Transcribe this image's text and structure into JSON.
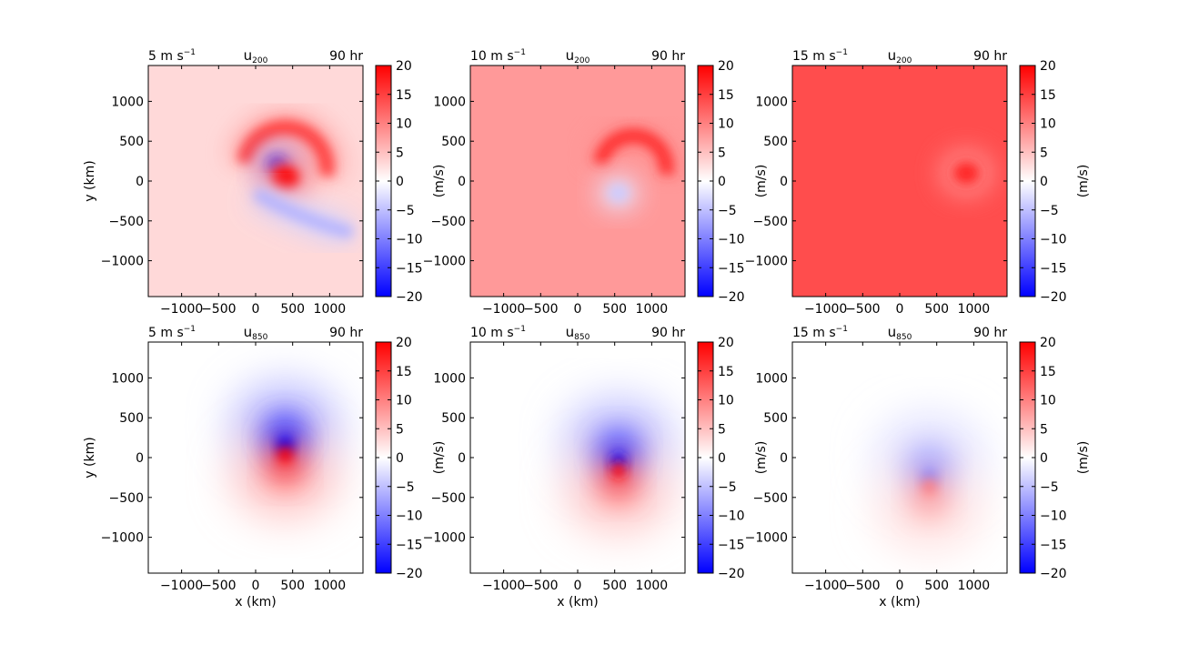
{
  "figure": {
    "rows": [
      {
        "variable_main": "u",
        "variable_sub": "200"
      },
      {
        "variable_main": "u",
        "variable_sub": "850"
      }
    ],
    "columns": [
      {
        "shear_label": "5 m s",
        "shear_exp": "−1"
      },
      {
        "shear_label": "10 m s",
        "shear_exp": "−1"
      },
      {
        "shear_label": "15 m s",
        "shear_exp": "−1"
      }
    ],
    "time_label": "90 hr",
    "x_label": "x (km)",
    "y_label": "y (km)",
    "colorbar_label": "(m/s)",
    "colorbar_ticks": [
      "20",
      "15",
      "10",
      "5",
      "0",
      "−5",
      "−10",
      "−15",
      "−20"
    ],
    "x_ticks": [
      "−1000",
      "−500",
      "0",
      "500",
      "1000"
    ],
    "y_ticks": [
      "1000",
      "500",
      "0",
      "−500",
      "−1000"
    ]
  },
  "chart_data": [
    {
      "type": "heatmap",
      "title": "u200",
      "subtitle_left": "5 m s−1",
      "subtitle_right": "90 hr",
      "xlim": [
        -1450,
        1450
      ],
      "ylim": [
        -1450,
        1450
      ],
      "xlabel": "",
      "ylabel": "y (km)",
      "colorbar": {
        "label": "(m/s)",
        "range": [
          -20,
          20
        ],
        "colormap": "bwr"
      },
      "background_value": 3,
      "features": [
        {
          "kind": "arc_jet",
          "cx": 400,
          "cy": 150,
          "radius": 560,
          "value": 15,
          "note": "positive jet north of centre"
        },
        {
          "kind": "blob",
          "x": 300,
          "y": 200,
          "value": -18,
          "note": "negative core near centre"
        },
        {
          "kind": "blob",
          "x": 400,
          "y": 40,
          "value": 20,
          "note": "positive core near centre"
        },
        {
          "kind": "band",
          "from": [
            0,
            -150
          ],
          "to": [
            1300,
            -650
          ],
          "value": -6,
          "note": "negative outflow band"
        }
      ]
    },
    {
      "type": "heatmap",
      "title": "u200",
      "subtitle_left": "10 m s−1",
      "subtitle_right": "90 hr",
      "xlim": [
        -1450,
        1450
      ],
      "ylim": [
        -1450,
        1450
      ],
      "xlabel": "",
      "ylabel": "",
      "colorbar": {
        "label": "(m/s)",
        "range": [
          -20,
          20
        ],
        "colormap": "bwr"
      },
      "background_value": 8,
      "features": [
        {
          "kind": "arc_jet",
          "cx": 750,
          "cy": 150,
          "radius": 450,
          "value": 16,
          "note": "positive jet north-east of centre"
        },
        {
          "kind": "blob",
          "x": 550,
          "y": -150,
          "value": -4,
          "note": "weak negative core"
        }
      ]
    },
    {
      "type": "heatmap",
      "title": "u200",
      "subtitle_left": "15 m s−1",
      "subtitle_right": "90 hr",
      "xlim": [
        -1450,
        1450
      ],
      "ylim": [
        -1450,
        1450
      ],
      "xlabel": "",
      "ylabel": "",
      "colorbar": {
        "label": "(m/s)",
        "range": [
          -20,
          20
        ],
        "colormap": "bwr"
      },
      "background_value": 14,
      "features": [
        {
          "kind": "blob",
          "x": 900,
          "y": 100,
          "value": 17,
          "note": "stronger flow east of centre"
        }
      ]
    },
    {
      "type": "heatmap",
      "title": "u850",
      "subtitle_left": "5 m s−1",
      "subtitle_right": "90 hr",
      "xlim": [
        -1450,
        1450
      ],
      "ylim": [
        -1450,
        1450
      ],
      "xlabel": "x (km)",
      "ylabel": "y (km)",
      "colorbar": {
        "label": "(m/s)",
        "range": [
          -20,
          20
        ],
        "colormap": "bwr"
      },
      "background_value": 0,
      "features": [
        {
          "kind": "dipole",
          "x": 400,
          "y": 100,
          "north_value": -20,
          "south_value": 20,
          "note": "negative north, positive south"
        }
      ]
    },
    {
      "type": "heatmap",
      "title": "u850",
      "subtitle_left": "10 m s−1",
      "subtitle_right": "90 hr",
      "xlim": [
        -1450,
        1450
      ],
      "ylim": [
        -1450,
        1450
      ],
      "xlabel": "x (km)",
      "ylabel": "",
      "colorbar": {
        "label": "(m/s)",
        "range": [
          -20,
          20
        ],
        "colormap": "bwr"
      },
      "background_value": 0,
      "features": [
        {
          "kind": "dipole",
          "x": 550,
          "y": -100,
          "north_value": -18,
          "south_value": 18,
          "note": "negative north, positive south"
        }
      ]
    },
    {
      "type": "heatmap",
      "title": "u850",
      "subtitle_left": "15 m s−1",
      "subtitle_right": "90 hr",
      "xlim": [
        -1450,
        1450
      ],
      "ylim": [
        -1450,
        1450
      ],
      "xlabel": "x (km)",
      "ylabel": "",
      "colorbar": {
        "label": "(m/s)",
        "range": [
          -20,
          20
        ],
        "colormap": "bwr"
      },
      "background_value": 0,
      "features": [
        {
          "kind": "dipole",
          "x": 400,
          "y": -300,
          "north_value": -9,
          "south_value": 10,
          "note": "weaker negative north, positive south"
        }
      ]
    }
  ]
}
